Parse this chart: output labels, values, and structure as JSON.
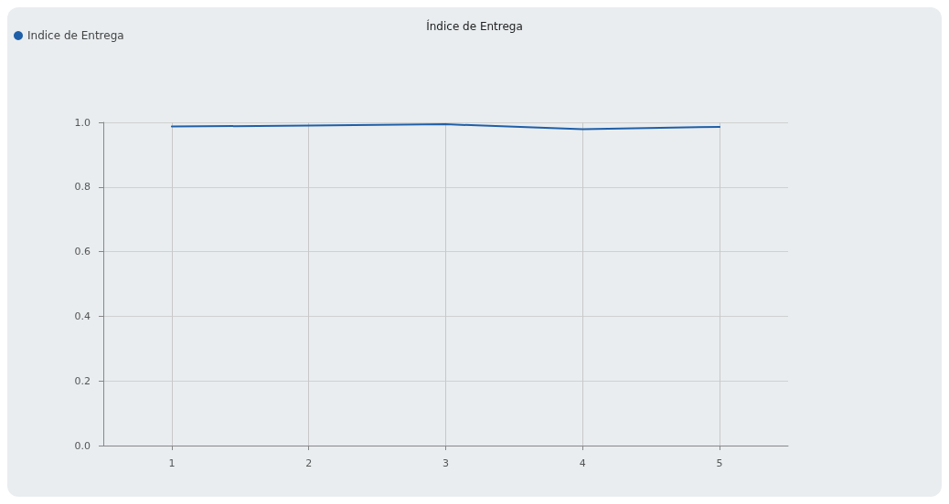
{
  "chart_data": {
    "type": "line",
    "title": "Índice de Entrega",
    "x": [
      1,
      2,
      3,
      4,
      5
    ],
    "series": [
      {
        "name": "Indice de Entrega",
        "color": "#1f5fa8",
        "values": [
          0.987,
          0.99,
          0.994,
          0.979,
          0.986
        ]
      }
    ],
    "xlim": [
      0.5,
      5.5
    ],
    "xticks": [
      1,
      2,
      3,
      4,
      5
    ],
    "ylim": [
      0,
      1
    ],
    "yticks": [
      {
        "value": 0,
        "label": "0.0"
      },
      {
        "value": 0.2,
        "label": "0.2"
      },
      {
        "value": 0.4,
        "label": "0.4"
      },
      {
        "value": 0.6,
        "label": "0.6"
      },
      {
        "value": 0.8,
        "label": "0.8"
      },
      {
        "value": 1,
        "label": "1.0"
      }
    ],
    "grid": true,
    "legend": "top left",
    "marker": "none",
    "line_style": "solid"
  }
}
